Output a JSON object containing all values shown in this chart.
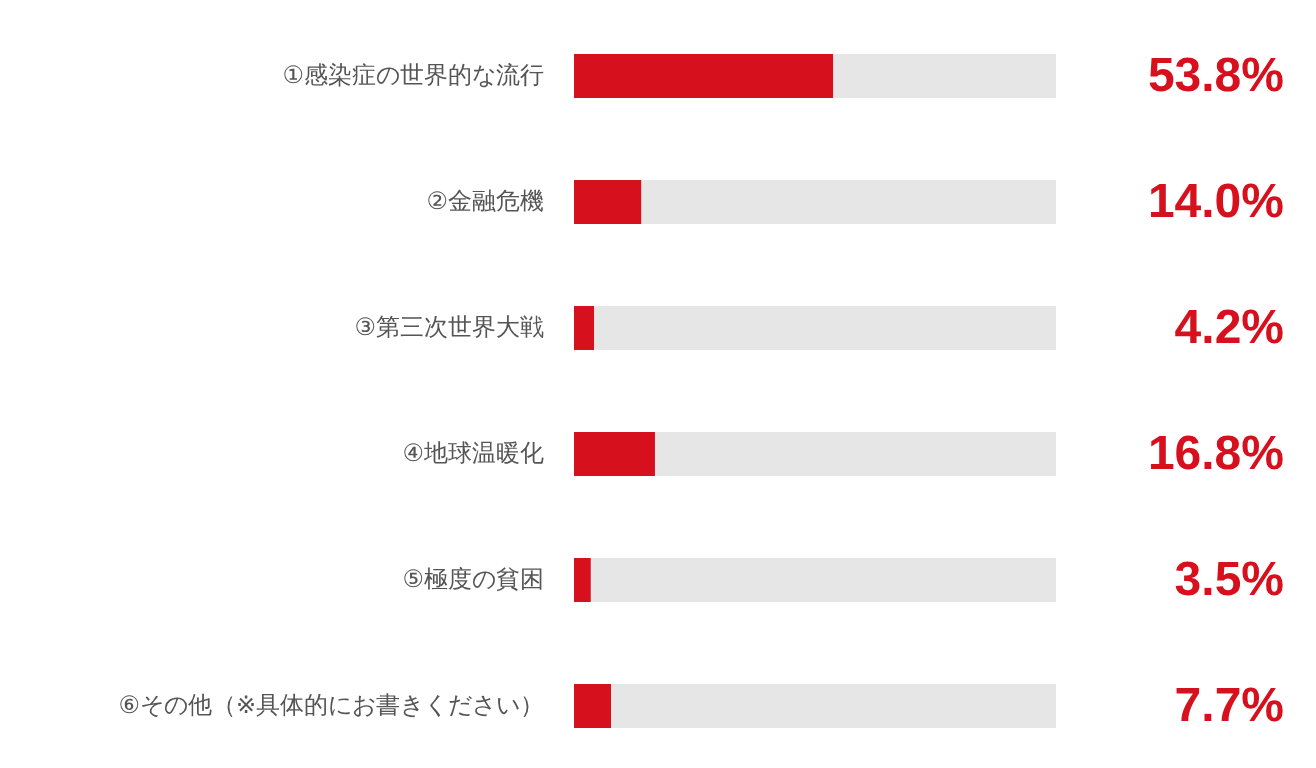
{
  "chart_data": {
    "type": "bar",
    "orientation": "horizontal",
    "stacked": true,
    "categories": [
      "①感染症の世界的な流行",
      "②金融危機",
      "③第三次世界大戦",
      "④地球温暖化",
      "⑤極度の貧困",
      "⑥その他（※具体的にお書きください）"
    ],
    "series": [
      {
        "color": "#d7101d",
        "values": [
          53.8,
          14.0,
          4.2,
          16.8,
          3.5,
          7.7
        ],
        "value_labels": [
          "53.8%",
          "14.0%",
          "4.2%",
          "16.8%",
          "3.5%",
          "7.7%"
        ]
      },
      {
        "color": "#e6e6e6",
        "values": [
          46.2,
          86.0,
          95.8,
          83.2,
          96.5,
          92.3
        ]
      }
    ],
    "xlim": [
      0,
      100
    ],
    "grid": false
  }
}
